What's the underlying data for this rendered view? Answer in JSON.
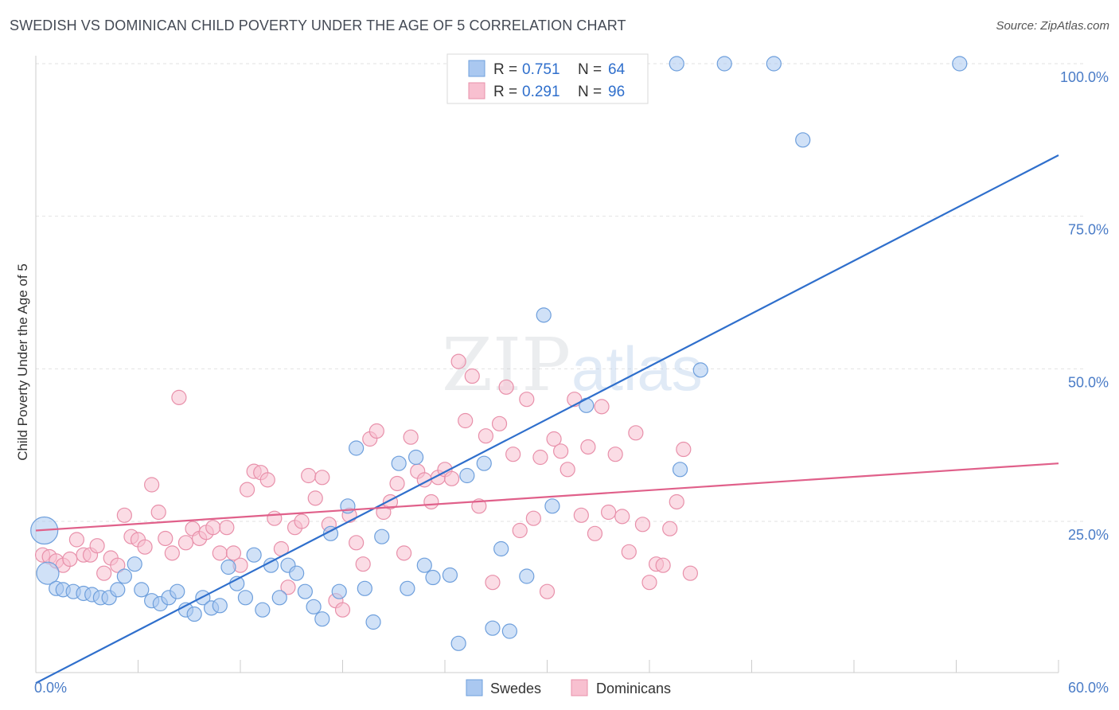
{
  "title": "SWEDISH VS DOMINICAN CHILD POVERTY UNDER THE AGE OF 5 CORRELATION CHART",
  "source": "Source: ZipAtlas.com",
  "watermark": {
    "zip": "ZIP",
    "atlas": "atlas"
  },
  "chart_data": {
    "type": "scatter",
    "ylabel": "Child Poverty Under the Age of 5",
    "xlim": [
      0,
      60
    ],
    "ylim": [
      0,
      102
    ],
    "x_tick_labels": [
      "0.0%",
      "60.0%"
    ],
    "y_ticks": [
      25,
      50,
      75,
      100
    ],
    "y_tick_labels": [
      "25.0%",
      "50.0%",
      "75.0%",
      "100.0%"
    ],
    "grid": true,
    "legend_placement": "top-center",
    "legend": [
      {
        "label_r": "R =",
        "r": "0.751",
        "label_n": "N =",
        "n": "64"
      },
      {
        "label_r": "R =",
        "r": "0.291",
        "label_n": "N =",
        "n": "96"
      }
    ],
    "bottom_legend": [
      "Swedes",
      "Dominicans"
    ],
    "colors": {
      "swedes_fill": "#aac8f0",
      "swedes_stroke": "#6e9fdc",
      "swedes_line": "#2f6fcc",
      "dominicans_fill": "#f8c0d0",
      "dominicans_stroke": "#e890aa",
      "dominicans_line": "#e0608a"
    },
    "series": [
      {
        "name": "Swedes",
        "trend": {
          "x": [
            0,
            60
          ],
          "y": [
            -1.5,
            85
          ]
        },
        "points": [
          [
            0.5,
            23.5
          ],
          [
            0.7,
            16.5
          ],
          [
            1.2,
            14
          ],
          [
            1.6,
            13.8
          ],
          [
            2.2,
            13.5
          ],
          [
            2.8,
            13.2
          ],
          [
            3.3,
            13
          ],
          [
            3.8,
            12.5
          ],
          [
            4.3,
            12.5
          ],
          [
            4.8,
            13.8
          ],
          [
            5.2,
            16
          ],
          [
            5.8,
            18
          ],
          [
            6.2,
            13.8
          ],
          [
            6.8,
            12
          ],
          [
            7.3,
            11.5
          ],
          [
            7.8,
            12.5
          ],
          [
            8.3,
            13.5
          ],
          [
            8.8,
            10.5
          ],
          [
            9.3,
            9.8
          ],
          [
            9.8,
            12.5
          ],
          [
            10.3,
            10.8
          ],
          [
            10.8,
            11.2
          ],
          [
            11.3,
            17.5
          ],
          [
            11.8,
            14.8
          ],
          [
            12.3,
            12.5
          ],
          [
            12.8,
            19.5
          ],
          [
            13.3,
            10.5
          ],
          [
            13.8,
            17.8
          ],
          [
            14.3,
            12.5
          ],
          [
            14.8,
            17.8
          ],
          [
            15.3,
            16.5
          ],
          [
            15.8,
            13.5
          ],
          [
            16.3,
            11
          ],
          [
            16.8,
            9
          ],
          [
            17.3,
            23
          ],
          [
            17.8,
            13.5
          ],
          [
            18.3,
            27.5
          ],
          [
            18.8,
            37
          ],
          [
            19.3,
            14
          ],
          [
            19.8,
            8.5
          ],
          [
            20.3,
            22.5
          ],
          [
            21.3,
            34.5
          ],
          [
            21.8,
            14
          ],
          [
            22.3,
            35.5
          ],
          [
            22.8,
            17.8
          ],
          [
            23.3,
            15.8
          ],
          [
            24.3,
            16.2
          ],
          [
            24.8,
            5
          ],
          [
            25.3,
            32.5
          ],
          [
            26.3,
            34.5
          ],
          [
            26.8,
            7.5
          ],
          [
            27.3,
            20.5
          ],
          [
            27.8,
            7
          ],
          [
            28.8,
            16
          ],
          [
            29.8,
            58.8
          ],
          [
            30.3,
            27.5
          ],
          [
            32.3,
            44
          ],
          [
            37.6,
            100
          ],
          [
            37.8,
            33.5
          ],
          [
            39,
            49.8
          ],
          [
            40.4,
            100
          ],
          [
            43.3,
            100
          ],
          [
            45,
            87.5
          ],
          [
            54.2,
            100
          ]
        ]
      },
      {
        "name": "Dominicans",
        "trend": {
          "x": [
            0,
            60
          ],
          "y": [
            23.5,
            34.5
          ]
        },
        "points": [
          [
            0.4,
            19.5
          ],
          [
            0.8,
            19.2
          ],
          [
            1.2,
            18.5
          ],
          [
            1.6,
            17.8
          ],
          [
            2,
            18.8
          ],
          [
            2.4,
            22
          ],
          [
            2.8,
            19.5
          ],
          [
            3.2,
            19.5
          ],
          [
            3.6,
            21
          ],
          [
            4,
            16.5
          ],
          [
            4.4,
            19
          ],
          [
            4.8,
            17.8
          ],
          [
            5.2,
            26
          ],
          [
            5.6,
            22.5
          ],
          [
            6,
            22
          ],
          [
            6.4,
            20.8
          ],
          [
            6.8,
            31
          ],
          [
            7.2,
            26.5
          ],
          [
            7.6,
            22.2
          ],
          [
            8,
            19.8
          ],
          [
            8.4,
            45.3
          ],
          [
            8.8,
            21.5
          ],
          [
            9.2,
            23.8
          ],
          [
            9.6,
            22.2
          ],
          [
            10,
            23.2
          ],
          [
            10.4,
            24
          ],
          [
            10.8,
            19.8
          ],
          [
            11.2,
            24
          ],
          [
            11.6,
            19.8
          ],
          [
            12,
            17.8
          ],
          [
            12.4,
            30.2
          ],
          [
            12.8,
            33.2
          ],
          [
            13.2,
            33
          ],
          [
            13.6,
            31.8
          ],
          [
            14,
            25.5
          ],
          [
            14.4,
            20.5
          ],
          [
            14.8,
            14.2
          ],
          [
            15.2,
            24
          ],
          [
            15.6,
            25
          ],
          [
            16,
            32.5
          ],
          [
            16.4,
            28.8
          ],
          [
            16.8,
            32.2
          ],
          [
            17.2,
            24.5
          ],
          [
            17.6,
            12
          ],
          [
            18,
            10.5
          ],
          [
            18.4,
            26
          ],
          [
            18.8,
            21.5
          ],
          [
            19.2,
            18
          ],
          [
            19.6,
            38.5
          ],
          [
            20,
            39.8
          ],
          [
            20.4,
            26.5
          ],
          [
            20.8,
            28.2
          ],
          [
            21.2,
            31.2
          ],
          [
            21.6,
            19.8
          ],
          [
            22,
            38.8
          ],
          [
            22.4,
            33.2
          ],
          [
            22.8,
            31.8
          ],
          [
            23.2,
            28.2
          ],
          [
            23.6,
            32.2
          ],
          [
            24,
            33.5
          ],
          [
            24.4,
            32
          ],
          [
            24.8,
            51.2
          ],
          [
            25.2,
            41.5
          ],
          [
            25.6,
            48.8
          ],
          [
            26,
            27.5
          ],
          [
            26.4,
            39
          ],
          [
            26.8,
            15
          ],
          [
            27.2,
            41
          ],
          [
            27.6,
            47
          ],
          [
            28,
            36
          ],
          [
            28.4,
            23.5
          ],
          [
            28.8,
            45
          ],
          [
            29.2,
            25.5
          ],
          [
            29.6,
            35.5
          ],
          [
            30,
            13.5
          ],
          [
            30.4,
            38.5
          ],
          [
            30.8,
            36.5
          ],
          [
            31.2,
            33.5
          ],
          [
            31.6,
            45
          ],
          [
            32,
            26
          ],
          [
            32.4,
            37.2
          ],
          [
            32.8,
            23
          ],
          [
            33.2,
            43.8
          ],
          [
            33.6,
            26.5
          ],
          [
            34,
            36
          ],
          [
            34.4,
            25.8
          ],
          [
            34.8,
            20
          ],
          [
            35.2,
            39.5
          ],
          [
            35.6,
            24.5
          ],
          [
            36,
            15
          ],
          [
            36.4,
            18
          ],
          [
            36.8,
            17.8
          ],
          [
            37.2,
            23.8
          ],
          [
            37.6,
            28.2
          ],
          [
            38,
            36.8
          ],
          [
            38.4,
            16.5
          ]
        ]
      }
    ]
  }
}
